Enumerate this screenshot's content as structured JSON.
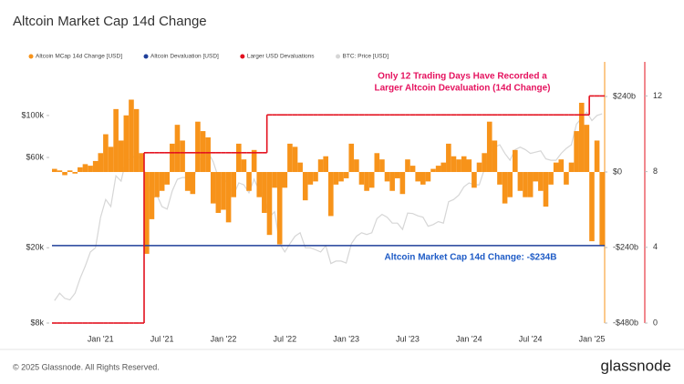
{
  "chart_data": {
    "type": "bar",
    "title": "Altcoin Market Cap 14d Change",
    "categories": [
      null,
      null,
      null,
      null,
      null,
      null,
      null,
      null,
      null,
      "Jan '21",
      null,
      null,
      null,
      null,
      null,
      null,
      null,
      null,
      null,
      null,
      null,
      "Jul '21",
      null,
      null,
      null,
      null,
      null,
      null,
      null,
      null,
      null,
      null,
      null,
      "Jan '22",
      null,
      null,
      null,
      null,
      null,
      null,
      null,
      null,
      null,
      null,
      null,
      "Jul '22",
      null,
      null,
      null,
      null,
      null,
      null,
      null,
      null,
      null,
      null,
      null,
      "Jan '23",
      null,
      null,
      null,
      null,
      null,
      null,
      null,
      null,
      null,
      null,
      null,
      "Jul '23",
      null,
      null,
      null,
      null,
      null,
      null,
      null,
      null,
      null,
      null,
      null,
      "Jan '24",
      null,
      null,
      null,
      null,
      null,
      null,
      null,
      null,
      null,
      null,
      null,
      "Jul '24",
      null,
      null,
      null,
      null,
      null,
      null,
      null,
      null,
      null,
      null,
      null,
      "Jan '25",
      null,
      null
    ],
    "series": [
      {
        "name": "Altcoin MCap 14d Change [USD]",
        "color": "#f7931a",
        "axis": "y2",
        "type": "bar",
        "values": [
          10,
          5,
          -10,
          5,
          -5,
          15,
          25,
          20,
          35,
          60,
          120,
          80,
          200,
          100,
          180,
          230,
          200,
          60,
          -260,
          -150,
          -80,
          -60,
          -40,
          90,
          150,
          100,
          -60,
          -70,
          160,
          130,
          110,
          -100,
          -130,
          -120,
          -160,
          -80,
          90,
          40,
          -60,
          70,
          -80,
          -130,
          -200,
          -50,
          -230,
          -50,
          90,
          80,
          30,
          -90,
          -40,
          -30,
          40,
          50,
          -140,
          -40,
          -30,
          -20,
          90,
          40,
          -40,
          -60,
          -50,
          60,
          40,
          -30,
          -60,
          -20,
          -70,
          40,
          20,
          -30,
          -40,
          -30,
          10,
          20,
          30,
          90,
          50,
          40,
          50,
          40,
          -50,
          30,
          60,
          160,
          100,
          -40,
          -100,
          -80,
          70,
          -60,
          -80,
          -80,
          -30,
          -60,
          -110,
          -40,
          30,
          40,
          -40,
          30,
          130,
          220,
          150,
          -220,
          100,
          -234
        ]
      },
      {
        "name": "Altcoin Devaluation [USD]",
        "color": "#1f3f9a",
        "axis": "y2",
        "type": "hline",
        "value": -234
      },
      {
        "name": "Larger USD Devaluations",
        "color": "#e3101e",
        "axis": "y3",
        "type": "step",
        "values": [
          0,
          0,
          0,
          0,
          0,
          0,
          0,
          0,
          0,
          0,
          0,
          0,
          0,
          0,
          0,
          0,
          0,
          0,
          9,
          9,
          9,
          9,
          9,
          9,
          9,
          9,
          9,
          9,
          9,
          9,
          9,
          9,
          9,
          9,
          9,
          9,
          9,
          9,
          9,
          9,
          9,
          9,
          11,
          11,
          11,
          11,
          11,
          11,
          11,
          11,
          11,
          11,
          11,
          11,
          11,
          11,
          11,
          11,
          11,
          11,
          11,
          11,
          11,
          11,
          11,
          11,
          11,
          11,
          11,
          11,
          11,
          11,
          11,
          11,
          11,
          11,
          11,
          11,
          11,
          11,
          11,
          11,
          11,
          11,
          11,
          11,
          11,
          11,
          11,
          11,
          11,
          11,
          11,
          11,
          11,
          11,
          11,
          11,
          11,
          11,
          11,
          11,
          11,
          11,
          11,
          12,
          12,
          12
        ]
      },
      {
        "name": "BTC: Price [USD]",
        "color": "#d6d6d6",
        "axis": "y",
        "type": "line",
        "values": [
          10500,
          11500,
          10800,
          10600,
          11500,
          13800,
          16000,
          19000,
          20000,
          29000,
          36000,
          33000,
          48000,
          45000,
          59000,
          58000,
          63000,
          57000,
          47000,
          36000,
          38000,
          33000,
          32000,
          40000,
          46000,
          47000,
          47000,
          44000,
          57000,
          61000,
          64000,
          57000,
          47000,
          47000,
          43000,
          38000,
          44000,
          43000,
          39000,
          46000,
          40000,
          38000,
          29000,
          31000,
          21000,
          19000,
          21000,
          23000,
          24000,
          20000,
          20000,
          19500,
          19000,
          20500,
          16500,
          17000,
          17000,
          16600,
          21000,
          23000,
          24000,
          23500,
          24000,
          28500,
          30000,
          29000,
          27000,
          27000,
          25000,
          30500,
          30300,
          29500,
          29000,
          26000,
          26500,
          27500,
          27000,
          35000,
          36000,
          38000,
          42000,
          44000,
          43000,
          43000,
          52000,
          62000,
          68000,
          70000,
          63000,
          58000,
          66000,
          68000,
          66000,
          63000,
          64000,
          65000,
          59000,
          58000,
          58000,
          63000,
          67000,
          70000,
          90000,
          97000,
          104000,
          94000,
          100000,
          102000
        ]
      }
    ],
    "ylim": [
      8000,
      192000
    ],
    "log_y": true,
    "yticks": [
      {
        "value": 8000,
        "label": "$8k"
      },
      {
        "value": 20000,
        "label": "$20k"
      },
      {
        "value": 60000,
        "label": "$60k"
      },
      {
        "value": 100000,
        "label": "$100k"
      }
    ],
    "y2lim": [
      -480,
      350
    ],
    "y2ticks": [
      {
        "value": -480,
        "label": "-$480b"
      },
      {
        "value": -240,
        "label": "-$240b"
      },
      {
        "value": 0,
        "label": "$0"
      },
      {
        "value": 240,
        "label": "$240b"
      }
    ],
    "y3lim": [
      0,
      13.8
    ],
    "y3ticks": [
      0,
      4,
      8,
      12
    ],
    "grid": false,
    "legend": "top-left",
    "annotations": [
      {
        "lines": [
          "Only 12 Trading Days Have Recorded a",
          "Larger Altcoin Devaluation (14d Change)"
        ],
        "color": "#e5135f"
      },
      {
        "lines": [
          "Altcoin Market Cap 14d Change: -$234B"
        ],
        "color": "#1e5bc6"
      }
    ]
  },
  "footer": "© 2025 Glassnode. All Rights Reserved.",
  "logo": "glassnode"
}
